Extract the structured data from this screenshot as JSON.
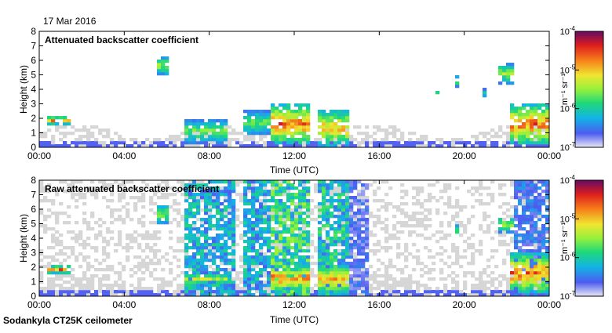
{
  "date_label": "17 Mar 2016",
  "footer_label": "Sodankyla CT25K ceilometer",
  "colormap": {
    "stops": [
      "#e8e8f5",
      "#4d5cf0",
      "#13b3e6",
      "#1fd87a",
      "#96f03c",
      "#f0e630",
      "#f77f1a",
      "#dc1e1e",
      "#640a64"
    ],
    "background_noise_color": "#d6d6d6"
  },
  "chart_data": [
    {
      "type": "heatmap",
      "title": "Attenuated backscatter coefficient",
      "xlabel": "Time (UTC)",
      "ylabel": "Height (km)",
      "x_ticks": [
        "00:00",
        "04:00",
        "08:00",
        "12:00",
        "16:00",
        "20:00",
        "00:00"
      ],
      "xlim_hours": [
        0,
        24
      ],
      "y_ticks": [
        "0",
        "1",
        "2",
        "3",
        "4",
        "5",
        "6",
        "7",
        "8"
      ],
      "ylim": [
        0,
        8
      ],
      "colorbar": {
        "scale": "log",
        "ticks": [
          "10^{-7}",
          "10^{-6}",
          "10^{-5}",
          "10^{-4}"
        ],
        "unit": "m⁻¹ sr⁻¹",
        "range": [
          1e-07,
          0.0001
        ]
      },
      "features": [
        {
          "t0": 0.3,
          "t1": 1.4,
          "z0": 1.6,
          "z1": 2.1,
          "level": 0.9
        },
        {
          "t0": 5.5,
          "t1": 6.0,
          "z0": 5.0,
          "z1": 6.3,
          "level": 0.6
        },
        {
          "t0": 6.8,
          "t1": 8.8,
          "z0": 0.3,
          "z1": 1.9,
          "level": 0.55
        },
        {
          "t0": 9.6,
          "t1": 10.8,
          "z0": 0.9,
          "z1": 2.5,
          "level": 0.55
        },
        {
          "t0": 10.9,
          "t1": 12.8,
          "z0": 0.2,
          "z1": 3.0,
          "level": 0.9
        },
        {
          "t0": 13.2,
          "t1": 14.5,
          "z0": 0.1,
          "z1": 2.6,
          "level": 0.8
        },
        {
          "t0": 18.6,
          "t1": 18.8,
          "z0": 3.6,
          "z1": 4.2,
          "level": 0.55
        },
        {
          "t0": 19.5,
          "t1": 19.8,
          "z0": 4.2,
          "z1": 5.0,
          "level": 0.55
        },
        {
          "t0": 20.8,
          "t1": 21.0,
          "z0": 3.4,
          "z1": 4.0,
          "level": 0.45
        },
        {
          "t0": 21.6,
          "t1": 22.3,
          "z0": 4.4,
          "z1": 5.8,
          "level": 0.6
        },
        {
          "t0": 22.2,
          "t1": 24.0,
          "z0": 0.2,
          "z1": 3.0,
          "level": 0.9
        }
      ]
    },
    {
      "type": "heatmap",
      "title": "Raw attenuated backscatter coefficient",
      "xlabel": "Time (UTC)",
      "ylabel": "Height (km)",
      "x_ticks": [
        "00:00",
        "04:00",
        "08:00",
        "12:00",
        "16:00",
        "20:00",
        "00:00"
      ],
      "xlim_hours": [
        0,
        24
      ],
      "y_ticks": [
        "0",
        "1",
        "2",
        "3",
        "4",
        "5",
        "6",
        "7",
        "8"
      ],
      "ylim": [
        0,
        8
      ],
      "colorbar": {
        "scale": "log",
        "ticks": [
          "10^{-7}",
          "10^{-6}",
          "10^{-5}",
          "10^{-4}"
        ],
        "unit": "m⁻¹ sr⁻¹",
        "range": [
          1e-07,
          0.0001
        ]
      },
      "noise_columns": [
        {
          "t0": 6.8,
          "t1": 9.3,
          "level": 0.25
        },
        {
          "t0": 9.6,
          "t1": 10.8,
          "level": 0.25
        },
        {
          "t0": 10.9,
          "t1": 12.8,
          "level": 0.35
        },
        {
          "t0": 13.2,
          "t1": 14.5,
          "level": 0.3
        },
        {
          "t0": 14.6,
          "t1": 15.5,
          "level": 0.12
        },
        {
          "t0": 22.3,
          "t1": 24.0,
          "level": 0.15
        }
      ],
      "features": [
        {
          "t0": 0.3,
          "t1": 1.4,
          "z0": 1.6,
          "z1": 2.1,
          "level": 0.9
        },
        {
          "t0": 5.5,
          "t1": 6.0,
          "z0": 5.0,
          "z1": 6.3,
          "level": 0.6
        },
        {
          "t0": 6.8,
          "t1": 8.8,
          "z0": 0.8,
          "z1": 1.6,
          "level": 0.65
        },
        {
          "t0": 10.9,
          "t1": 12.8,
          "z0": 0.3,
          "z1": 2.2,
          "level": 0.9
        },
        {
          "t0": 13.2,
          "t1": 14.5,
          "z0": 0.1,
          "z1": 2.2,
          "level": 0.8
        },
        {
          "t0": 19.5,
          "t1": 19.8,
          "z0": 4.2,
          "z1": 5.0,
          "level": 0.55
        },
        {
          "t0": 21.6,
          "t1": 22.3,
          "z0": 4.4,
          "z1": 5.5,
          "level": 0.6
        },
        {
          "t0": 22.2,
          "t1": 24.0,
          "z0": 0.2,
          "z1": 3.0,
          "level": 0.9
        }
      ]
    }
  ]
}
